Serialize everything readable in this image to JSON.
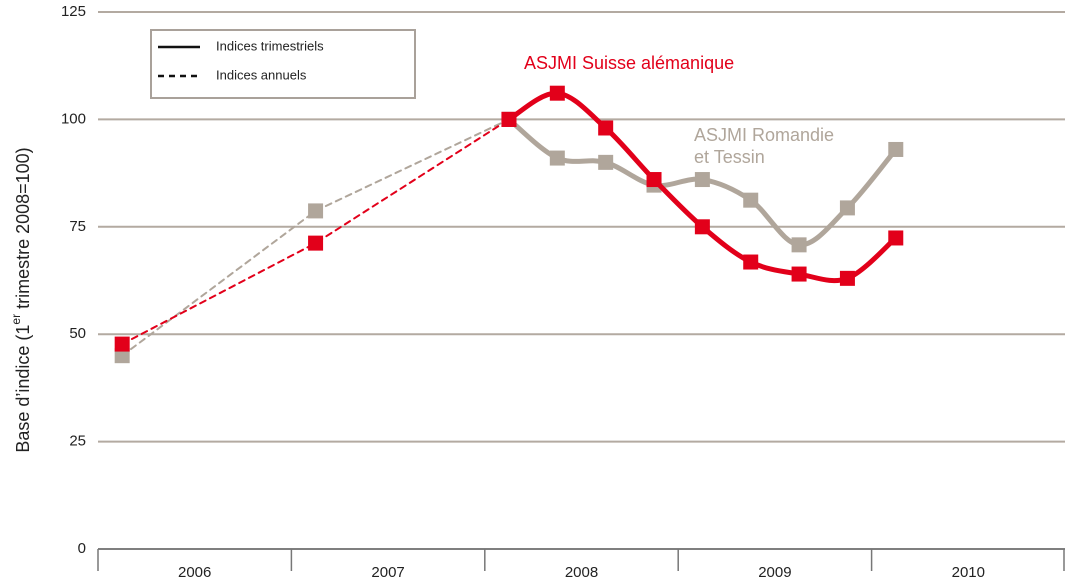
{
  "chart_data": {
    "type": "line",
    "ylabel": [
      "Base d’indice (1",
      "er",
      " trimestre 2008=100)"
    ],
    "categories": [
      "2006",
      "2007",
      "2008",
      "2009",
      "2010"
    ],
    "xlim": [
      2006,
      2011
    ],
    "xticks": [
      2006,
      2007,
      2008,
      2009,
      2010,
      2011
    ],
    "ylim": [
      0,
      125
    ],
    "yticks": [
      0,
      25,
      50,
      75,
      100,
      125
    ],
    "grid": true,
    "line_styles": [
      {
        "label": "Indices trimestriels",
        "dash": "solid"
      },
      {
        "label": "Indices annuels",
        "dash": "dashed"
      }
    ],
    "series": [
      {
        "label_lines": [
          "ASJMI Romandie",
          "et Tessin"
        ],
        "color": "#b0a69b",
        "annual": {
          "x": [
            2006.125,
            2007.125,
            2008.125
          ],
          "values": [
            45,
            78.7,
            100
          ]
        },
        "quarterly": {
          "x": [
            2008.125,
            2008.375,
            2008.625,
            2008.875,
            2009.125,
            2009.375,
            2009.625,
            2009.875,
            2010.125
          ],
          "values": [
            100,
            91,
            90,
            84.7,
            86,
            81.2,
            70.8,
            79.4,
            93
          ]
        }
      },
      {
        "label_lines": [
          "ASJMI Suisse alémanique"
        ],
        "color": "#e2001a",
        "annual": {
          "x": [
            2006.125,
            2007.125,
            2008.125
          ],
          "values": [
            47.7,
            71.2,
            100
          ]
        },
        "quarterly": {
          "x": [
            2008.125,
            2008.375,
            2008.625,
            2008.875,
            2009.125,
            2009.375,
            2009.625,
            2009.875,
            2010.125
          ],
          "values": [
            100,
            106.1,
            98,
            86,
            75,
            66.8,
            64,
            63,
            72.4
          ]
        }
      }
    ]
  }
}
